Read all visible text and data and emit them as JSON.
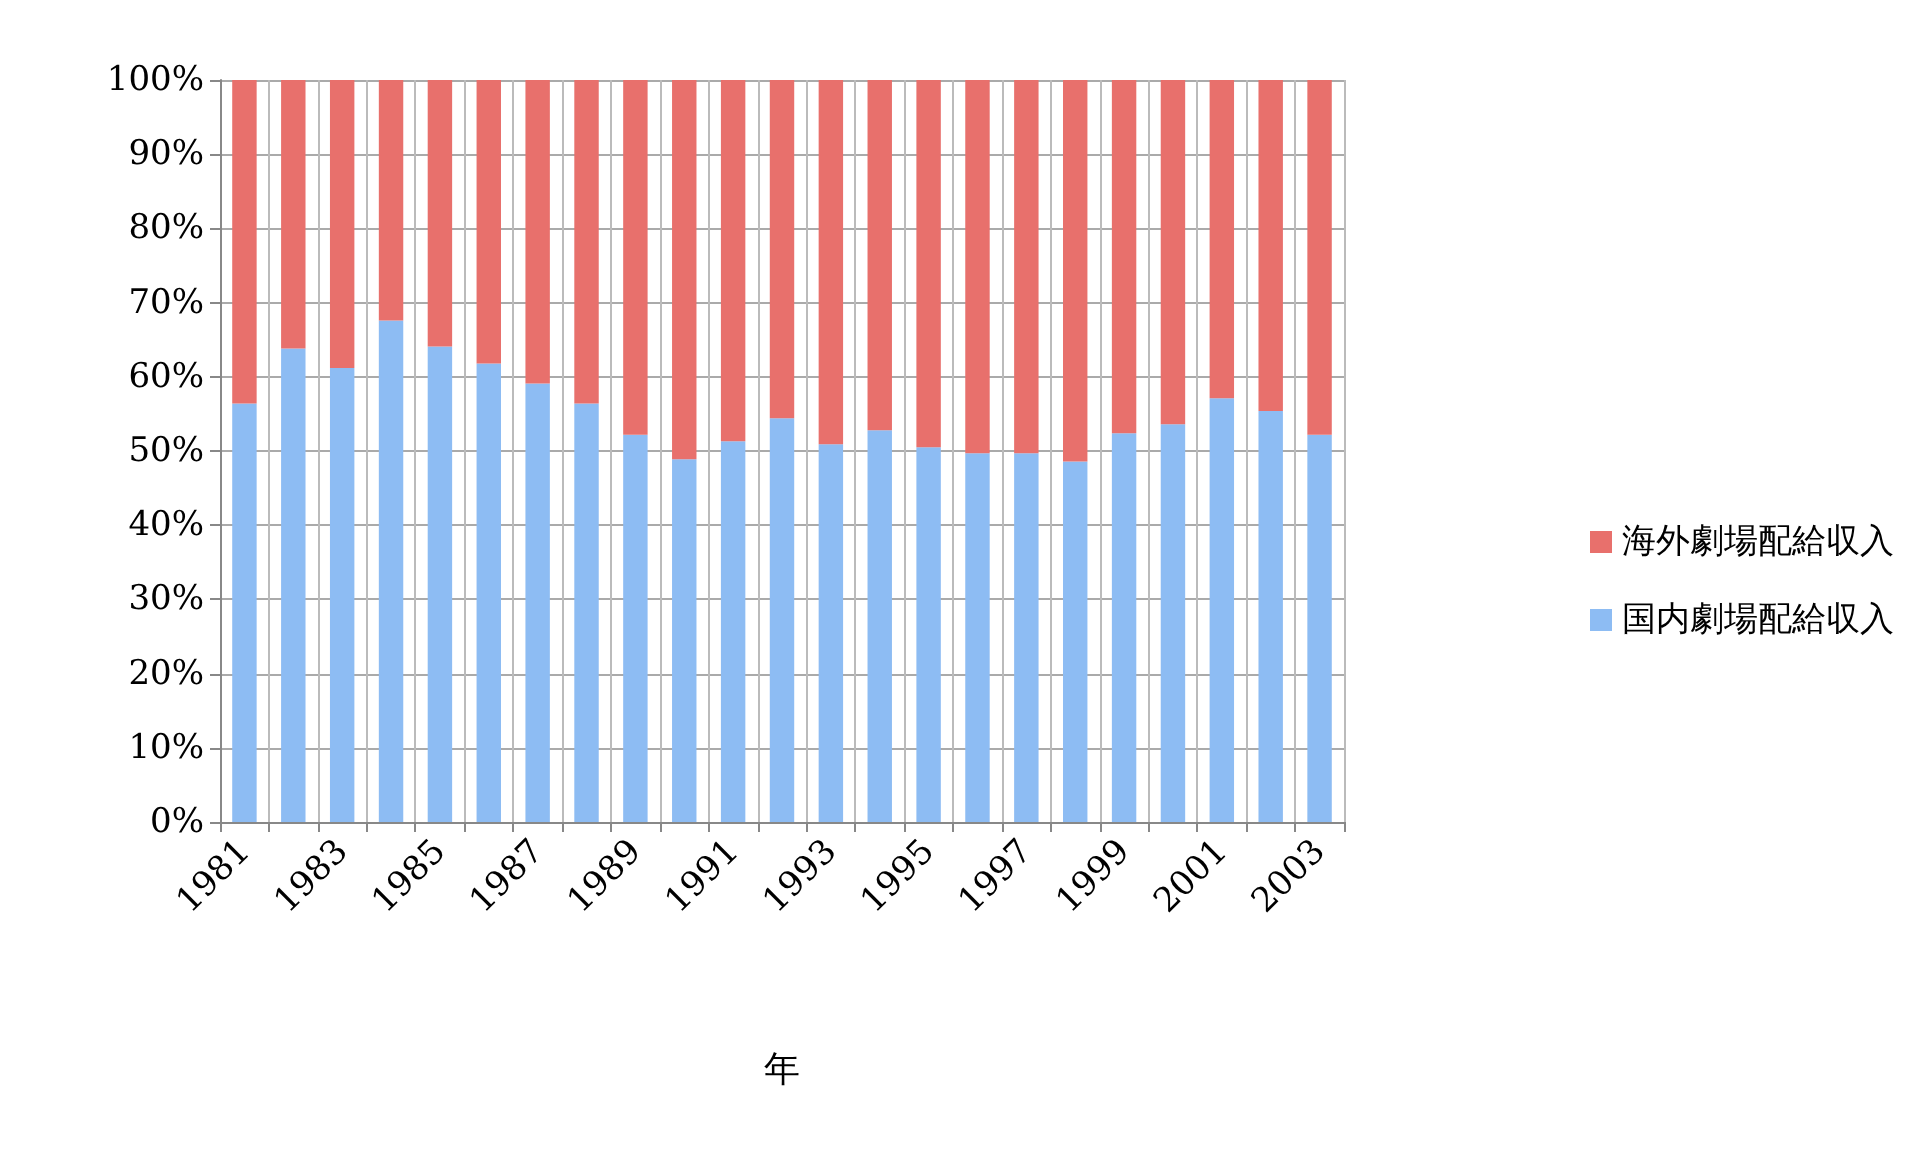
{
  "chart_data": {
    "type": "bar",
    "stacked": true,
    "xlabel": "年",
    "categories": [
      "1981",
      null,
      "1983",
      null,
      "1985",
      null,
      "1987",
      null,
      "1989",
      null,
      "1991",
      null,
      "1993",
      null,
      "1995",
      null,
      "1997",
      null,
      "1999",
      null,
      "2001",
      null,
      "2003"
    ],
    "series": [
      {
        "name": "国内劇場配給収入",
        "color": "#8dbcf3",
        "values": [
          56.4,
          63.8,
          61.2,
          67.6,
          64.1,
          61.8,
          59.1,
          56.4,
          52.2,
          48.9,
          51.3,
          54.4,
          50.9,
          52.8,
          50.5,
          49.7,
          49.7,
          48.6,
          52.4,
          53.6,
          57.1,
          55.4,
          52.2
        ]
      },
      {
        "name": "海外劇場配給収入",
        "color": "#e8706c",
        "values": [
          43.6,
          36.2,
          38.8,
          32.4,
          35.9,
          38.2,
          40.9,
          43.6,
          47.8,
          51.1,
          48.7,
          45.6,
          49.1,
          47.2,
          49.5,
          50.3,
          50.3,
          51.4,
          47.6,
          46.4,
          42.9,
          44.6,
          47.8
        ]
      }
    ],
    "ylim": [
      0,
      100
    ],
    "yticks": [
      {
        "value": 0,
        "label": "0%"
      },
      {
        "value": 10,
        "label": "10%"
      },
      {
        "value": 20,
        "label": "20%"
      },
      {
        "value": 30,
        "label": "30%"
      },
      {
        "value": 40,
        "label": "40%"
      },
      {
        "value": 50,
        "label": "50%"
      },
      {
        "value": 60,
        "label": "60%"
      },
      {
        "value": 70,
        "label": "70%"
      },
      {
        "value": 80,
        "label": "80%"
      },
      {
        "value": 90,
        "label": "90%"
      },
      {
        "value": 100,
        "label": "100%"
      }
    ],
    "grid": true,
    "legend": "right"
  }
}
